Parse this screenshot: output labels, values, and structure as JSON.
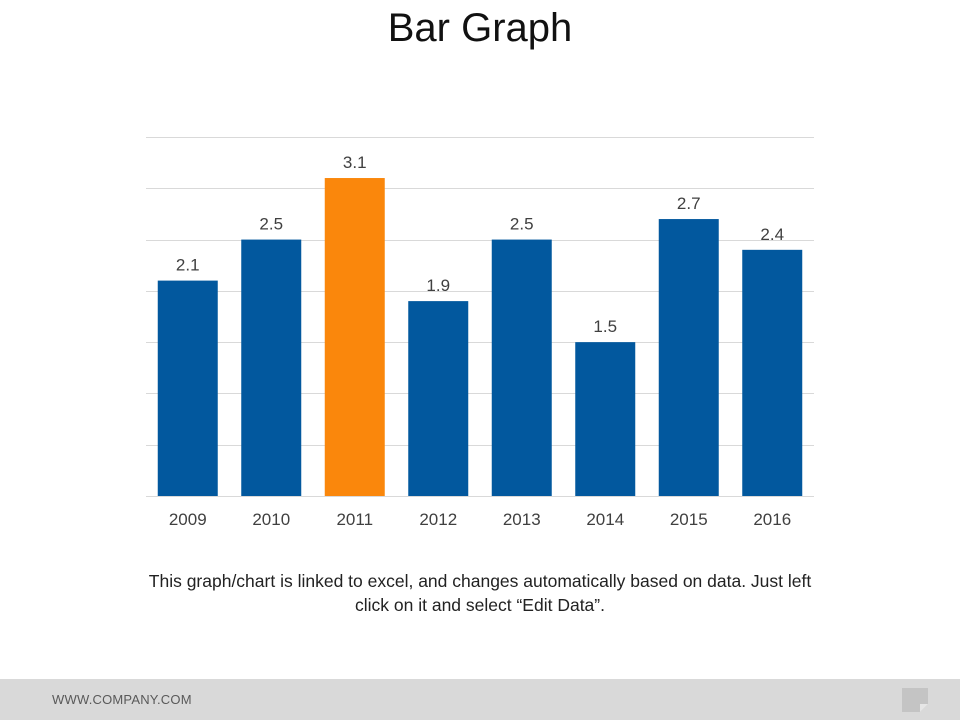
{
  "slide": {
    "title": "Bar Graph",
    "caption": "This graph/chart is linked to excel, and changes automatically based on data. Just left click on it and select “Edit Data”.",
    "footer_text": "WWW.COMPANY.COM"
  },
  "colors": {
    "bar": "#02589e",
    "highlight": "#fa870c",
    "gridline": "#d9d9d9",
    "label": "#404040"
  },
  "chart_data": {
    "type": "bar",
    "title": "",
    "xlabel": "",
    "ylabel": "",
    "categories": [
      "2009",
      "2010",
      "2011",
      "2012",
      "2013",
      "2014",
      "2015",
      "2016"
    ],
    "values": [
      2.1,
      2.5,
      3.1,
      1.9,
      2.5,
      1.5,
      2.7,
      2.4
    ],
    "data_labels": [
      "2.1",
      "2.5",
      "3.1",
      "1.9",
      "2.5",
      "1.5",
      "2.7",
      "2.4"
    ],
    "highlight_category": "2011",
    "ylim": [
      0,
      3.5
    ],
    "ytick_step": 0.5,
    "grid": true,
    "legend": "none"
  }
}
